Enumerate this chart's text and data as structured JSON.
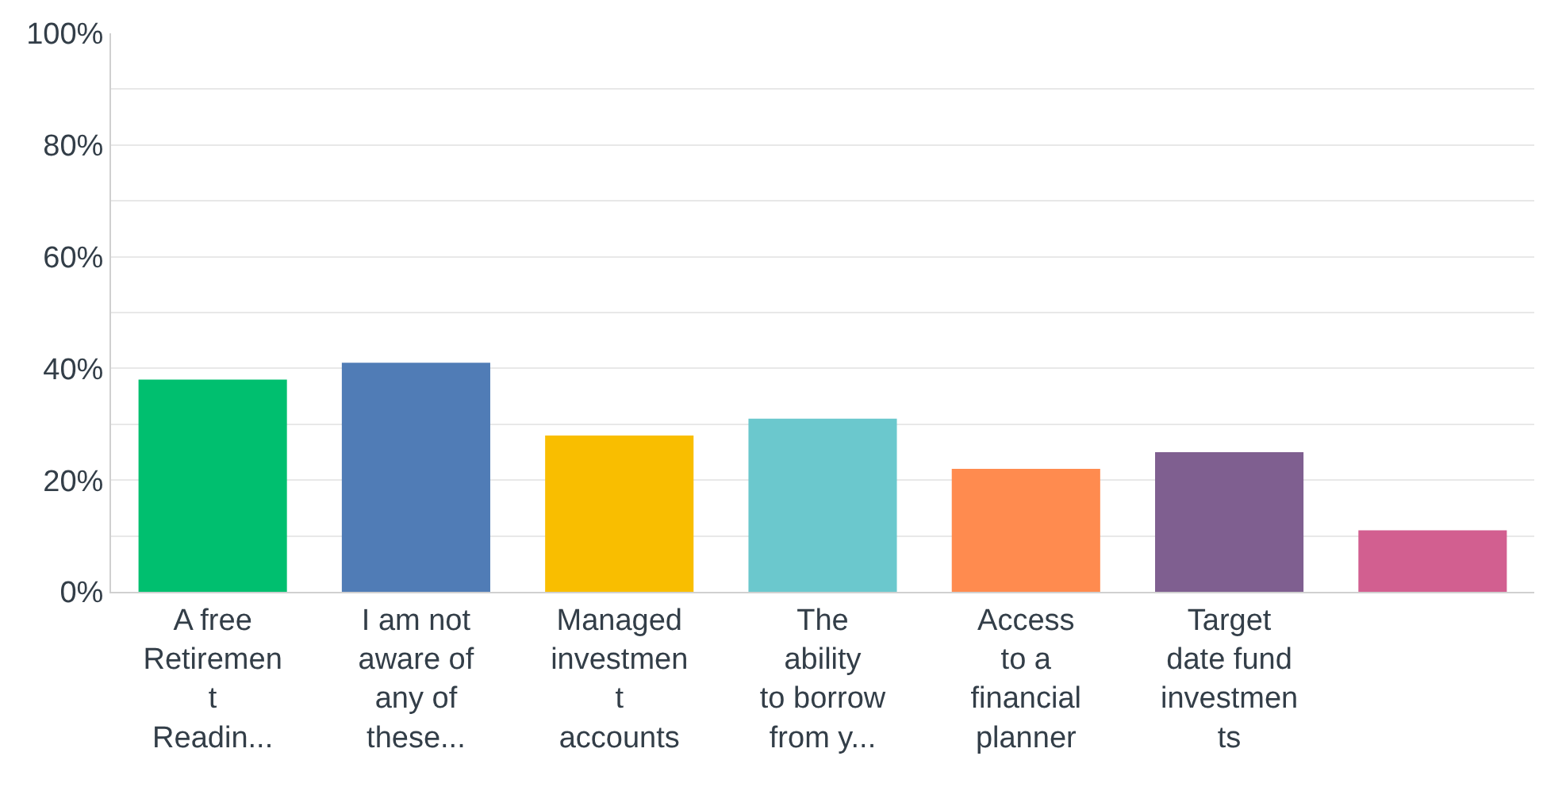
{
  "chart_data": {
    "type": "bar",
    "categories": [
      "A free\nRetiremen\nt\nReadin...",
      "I am not\naware of\nany of\nthese...",
      "Managed\ninvestmen\nt\naccounts",
      "The\nability\nto borrow\nfrom y...",
      "Access\nto a\nfinancial\nplanner",
      "Target\ndate fund\ninvestmen\nts",
      null
    ],
    "values": [
      38,
      41,
      28,
      31,
      22,
      25,
      11
    ],
    "colors": [
      "#00bf6f",
      "#507cb6",
      "#f9be00",
      "#6bc8cd",
      "#ff8b4f",
      "#7f5f90",
      "#d25f90"
    ],
    "ylim": [
      0,
      100
    ],
    "yticks": [
      {
        "value": 0,
        "label": "0%"
      },
      {
        "value": 10,
        "label": null
      },
      {
        "value": 20,
        "label": "20%"
      },
      {
        "value": 30,
        "label": null
      },
      {
        "value": 40,
        "label": "40%"
      },
      {
        "value": 50,
        "label": null
      },
      {
        "value": 60,
        "label": "60%"
      },
      {
        "value": 70,
        "label": null
      },
      {
        "value": 80,
        "label": "80%"
      },
      {
        "value": 90,
        "label": null
      },
      {
        "value": 100,
        "label": "100%"
      }
    ],
    "grid": "y"
  }
}
